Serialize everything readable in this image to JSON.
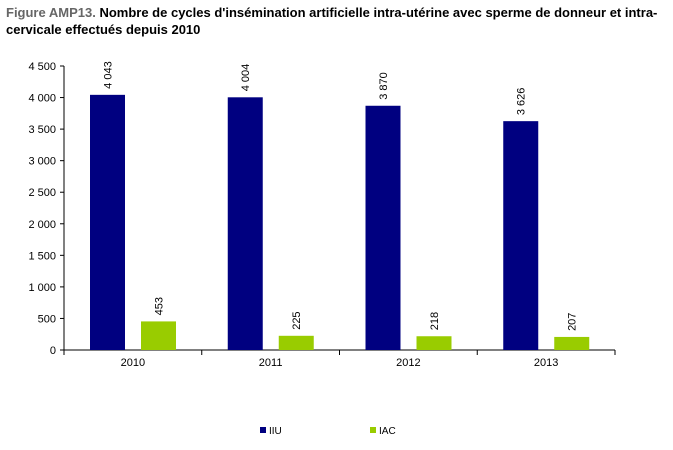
{
  "title": {
    "prefix": "Figure AMP13.",
    "text": "Nombre de cycles d'insémination artificielle intra-utérine avec sperme de donneur et intra-cervicale effectués depuis 2010"
  },
  "chart_data": {
    "type": "bar",
    "categories": [
      "2010",
      "2011",
      "2012",
      "2013"
    ],
    "series": [
      {
        "name": "IIU",
        "values": [
          4043,
          4004,
          3870,
          3626
        ],
        "labels": [
          "4 043",
          "4 004",
          "3 870",
          "3 626"
        ],
        "color": "#000080"
      },
      {
        "name": "IAC",
        "values": [
          453,
          225,
          218,
          207
        ],
        "labels": [
          "453",
          "225",
          "218",
          "207"
        ],
        "color": "#99CC00"
      }
    ],
    "ylim": [
      0,
      4500
    ],
    "yticks": [
      0,
      500,
      1000,
      1500,
      2000,
      2500,
      3000,
      3500,
      4000,
      4500
    ],
    "ytick_labels": [
      "0",
      "500",
      "1 000",
      "1 500",
      "2 000",
      "2 500",
      "3 000",
      "3 500",
      "4 000",
      "4 500"
    ],
    "xlabel": "",
    "ylabel": "",
    "grid": false,
    "legend_position": "bottom"
  }
}
